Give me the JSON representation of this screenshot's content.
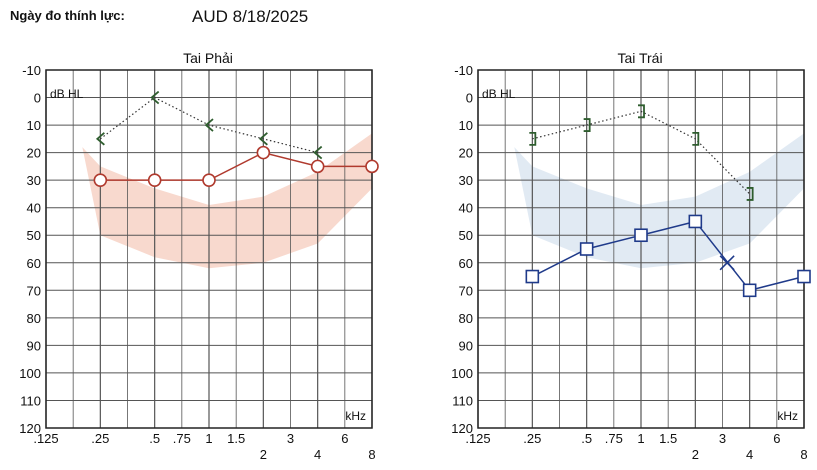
{
  "header": {
    "label": "Ngày đo thính lực:",
    "value": "AUD 8/18/2025"
  },
  "chart_data": [
    {
      "type": "line",
      "title": "Tai Phải",
      "ylabel": "dB HL",
      "xlabel": "kHz",
      "ylim": [
        -10,
        120
      ],
      "y_ticks": [
        "-10",
        "0",
        "10",
        "20",
        "30",
        "40",
        "50",
        "60",
        "70",
        "80",
        "90",
        "100",
        "110",
        "120"
      ],
      "x_ticks_top": [
        ".125",
        ".25",
        ".5",
        ".75",
        "1",
        "1.5",
        "3",
        "6"
      ],
      "x_ticks_bottom": [
        "2",
        "4",
        "8"
      ],
      "series": [
        {
          "marker": "circle",
          "color": "#b03a2e",
          "x": [
            0.25,
            0.5,
            1,
            2,
            4,
            8
          ],
          "y": [
            30,
            30,
            30,
            20,
            25,
            25
          ]
        },
        {
          "marker": "bone-right",
          "color": "#2e5d2e",
          "dotted": true,
          "x": [
            0.25,
            0.5,
            1,
            2,
            4
          ],
          "y": [
            15,
            0,
            10,
            15,
            20
          ]
        }
      ],
      "band_color": "#f2b9a6"
    },
    {
      "type": "line",
      "title": "Tai Trái",
      "ylabel": "dB HL",
      "xlabel": "kHz",
      "ylim": [
        -10,
        120
      ],
      "y_ticks": [
        "-10",
        "0",
        "10",
        "20",
        "30",
        "40",
        "50",
        "60",
        "70",
        "80",
        "90",
        "100",
        "110",
        "120"
      ],
      "x_ticks_top": [
        ".125",
        ".25",
        ".5",
        ".75",
        "1",
        "1.5",
        "3",
        "6"
      ],
      "x_ticks_bottom": [
        "2",
        "4",
        "8"
      ],
      "series": [
        {
          "marker": "square",
          "color": "#1f3a8a",
          "x": [
            0.25,
            0.5,
            1,
            2,
            4,
            8
          ],
          "y": [
            65,
            55,
            50,
            45,
            70,
            65
          ]
        },
        {
          "marker": "cross",
          "color": "#1f3a8a",
          "x": [
            3
          ],
          "y": [
            60
          ]
        },
        {
          "marker": "bone-left",
          "color": "#2e5d2e",
          "dotted": true,
          "x": [
            0.25,
            0.5,
            1,
            2,
            4
          ],
          "y": [
            15,
            10,
            5,
            15,
            35
          ]
        }
      ],
      "band_color": "#c9d8ea"
    }
  ]
}
